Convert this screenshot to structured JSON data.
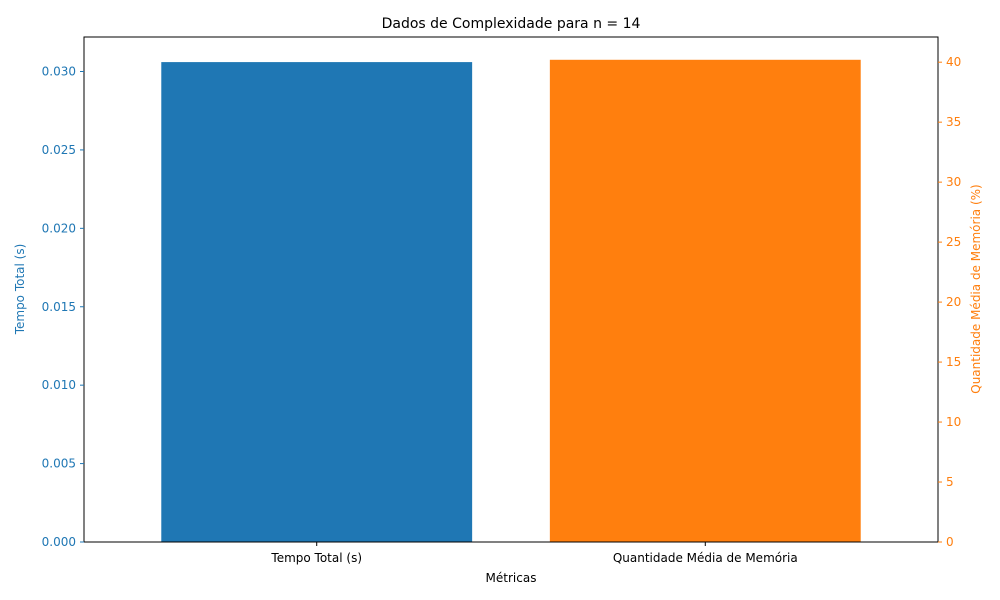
{
  "chart_data": {
    "type": "bar",
    "title": "Dados de Complexidade para n = 14",
    "xlabel": "Métricas",
    "categories": [
      "Tempo Total (s)",
      "Quantidade Média de Memória"
    ],
    "left_axis": {
      "label": "Tempo Total (s)",
      "color": "#1f77b4",
      "ylim": [
        0,
        0.0322
      ],
      "ticks": [
        0.0,
        0.005,
        0.01,
        0.015,
        0.02,
        0.025,
        0.03
      ],
      "tick_labels": [
        "0.000",
        "0.005",
        "0.010",
        "0.015",
        "0.020",
        "0.025",
        "0.030"
      ]
    },
    "right_axis": {
      "label": "Quantidade Média de Memória (%)",
      "color": "#ff7f0e",
      "ylim": [
        0,
        42.1
      ],
      "ticks": [
        0,
        5,
        10,
        15,
        20,
        25,
        30,
        35,
        40
      ],
      "tick_labels": [
        "0",
        "5",
        "10",
        "15",
        "20",
        "25",
        "30",
        "35",
        "40"
      ]
    },
    "bars": [
      {
        "category": "Tempo Total (s)",
        "value": 0.0306,
        "axis": "left",
        "color": "#1f77b4"
      },
      {
        "category": "Quantidade Média de Memória",
        "value": 40.2,
        "axis": "right",
        "color": "#ff7f0e"
      }
    ],
    "grid": false,
    "legend": "none"
  }
}
